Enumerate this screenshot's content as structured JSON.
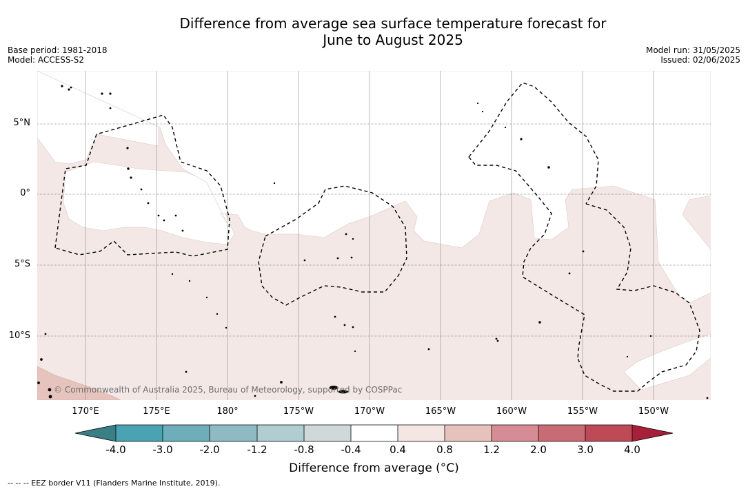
{
  "title": {
    "line1": "Difference from average sea surface temperature forecast for",
    "line2": "June to August 2025"
  },
  "meta_left": {
    "base_period": "Base period: 1981-2018",
    "model": "Model: ACCESS-S2"
  },
  "meta_right": {
    "model_run": "Model run: 31/05/2025",
    "issued": "Issued: 02/06/2025"
  },
  "lat_labels": [
    "5°N",
    "0°",
    "5°S",
    "10°S"
  ],
  "lon_labels": [
    "170°E",
    "175°E",
    "180°",
    "175°W",
    "170°W",
    "165°W",
    "160°W",
    "155°W",
    "150°W"
  ],
  "colorbar": {
    "ticks": [
      "-4.0",
      "-3.0",
      "-2.0",
      "-1.2",
      "-0.8",
      "-0.4",
      "0.4",
      "0.8",
      "1.2",
      "2.0",
      "3.0",
      "4.0"
    ],
    "colors": {
      "below_min": "#3a7e86",
      "bins": [
        "#4aa3b3",
        "#6eaebb",
        "#8fbac4",
        "#b0cdd1",
        "#cfd9d9",
        "#ffffff",
        "#f5e6e4",
        "#e6c2bd",
        "#d58c94",
        "#c96b74",
        "#be4a58"
      ],
      "above_max": "#a6203a"
    },
    "title": "Difference from average (°C)"
  },
  "legend_footnote": "--  --  -- EEZ border V11 (Flanders Marine Institute, 2019).",
  "copyright": "© Commonwealth of Australia 2025, Bureau of Meteorology, supported by COSPPac",
  "colors": {
    "light_anomaly": "#f4e8e6",
    "medium_anomaly": "#e6c4bd",
    "gridline": "#555555"
  }
}
